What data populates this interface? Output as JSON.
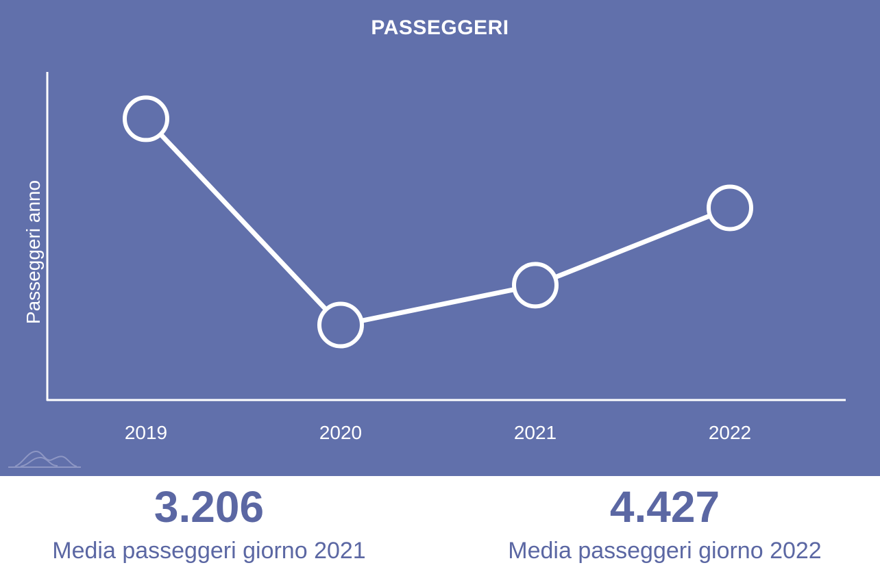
{
  "chart_data": {
    "type": "line",
    "title": "PASSEGGERI",
    "xlabel": "",
    "ylabel": "Passeggeri anno",
    "categories": [
      "2019",
      "2020",
      "2021",
      "2022"
    ],
    "series": [
      {
        "values": [
          1520000,
          640000,
          810000,
          1140000
        ]
      }
    ],
    "ylim": [
      320000,
      1720000
    ],
    "y_ticks_shown": false,
    "grid": false,
    "line_color": "#ffffff",
    "background_color": "#6170ab"
  },
  "stats": [
    {
      "value": "3.206",
      "label": "Media passeggeri giorno 2021"
    },
    {
      "value": "4.427",
      "label": "Media passeggeri giorno 2022"
    }
  ],
  "colors": {
    "panel_bg": "#6170ab",
    "stat_text": "#5b67a3",
    "logo_stroke": "#8e97c4"
  },
  "logo": {
    "icon": "mountain-logo-icon"
  }
}
